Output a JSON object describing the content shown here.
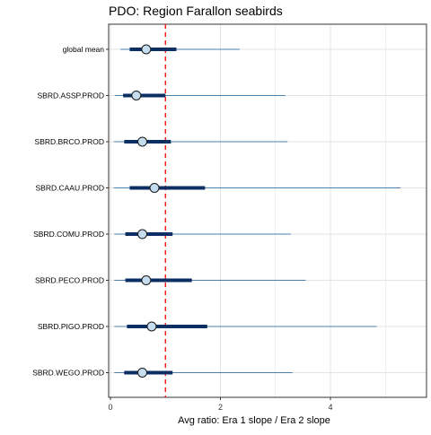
{
  "chart_data": {
    "type": "forest",
    "title": "PDO: Region Farallon seabirds",
    "xlabel": "Avg ratio: Era 1 slope / Era 2 slope",
    "ylabel": "",
    "xlim": [
      -0.5,
      5.6
    ],
    "xticks": [
      0,
      2,
      4
    ],
    "reference_line": 1,
    "grid": true,
    "colors": {
      "thin_interval": "#4a7fae",
      "thick_interval": "#0b2f63",
      "point_fill": "#c6dcef",
      "reference_line": "#ff0000",
      "grid": "#e3e3e3"
    },
    "rows": [
      {
        "label": "global mean",
        "mean": 0.65,
        "inner": [
          0.35,
          1.2
        ],
        "outer": [
          0.18,
          2.35
        ]
      },
      {
        "label": "SBRD.ASSP.PROD",
        "mean": 0.47,
        "inner": [
          0.23,
          1.0
        ],
        "outer": [
          0.08,
          3.18
        ]
      },
      {
        "label": "SBRD.BRCO.PROD",
        "mean": 0.58,
        "inner": [
          0.25,
          1.1
        ],
        "outer": [
          0.06,
          3.22
        ]
      },
      {
        "label": "SBRD.CAAU.PROD",
        "mean": 0.8,
        "inner": [
          0.35,
          1.72
        ],
        "outer": [
          0.06,
          5.28
        ]
      },
      {
        "label": "SBRD.COMU.PROD",
        "mean": 0.58,
        "inner": [
          0.27,
          1.13
        ],
        "outer": [
          0.07,
          3.28
        ]
      },
      {
        "label": "SBRD.PECO.PROD",
        "mean": 0.65,
        "inner": [
          0.27,
          1.48
        ],
        "outer": [
          0.07,
          3.55
        ]
      },
      {
        "label": "SBRD.PIGO.PROD",
        "mean": 0.75,
        "inner": [
          0.3,
          1.76
        ],
        "outer": [
          0.07,
          4.84
        ]
      },
      {
        "label": "SBRD.WEGO.PROD",
        "mean": 0.58,
        "inner": [
          0.25,
          1.13
        ],
        "outer": [
          0.07,
          3.31
        ]
      }
    ]
  }
}
